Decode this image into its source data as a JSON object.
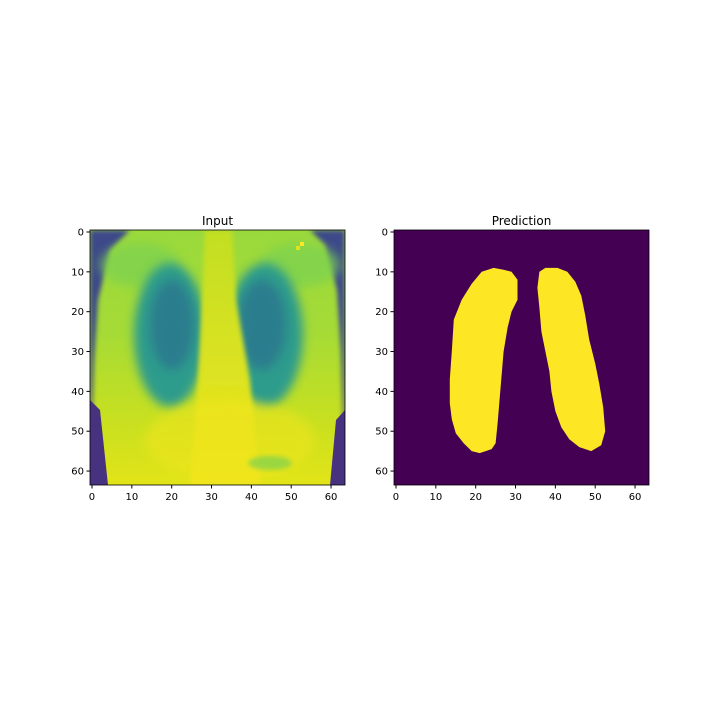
{
  "chart_data": [
    {
      "type": "heatmap",
      "title": "Input",
      "colormap": "viridis",
      "image_size": [
        64,
        64
      ],
      "xlim": [
        -0.5,
        63.5
      ],
      "ylim": [
        63.5,
        -0.5
      ],
      "x_ticks": [
        0,
        10,
        20,
        30,
        40,
        50,
        60
      ],
      "x_tick_labels": [
        "0",
        "10",
        "20",
        "30",
        "40",
        "50",
        "60"
      ],
      "y_ticks": [
        0,
        10,
        20,
        30,
        40,
        50,
        60
      ],
      "y_tick_labels": [
        "0",
        "10",
        "20",
        "30",
        "40",
        "50",
        "60"
      ],
      "content": "grayscale chest X-ray, 64x64, rendered with viridis colormap"
    },
    {
      "type": "heatmap",
      "title": "Prediction",
      "colormap": "viridis",
      "image_size": [
        64,
        64
      ],
      "xlim": [
        -0.5,
        63.5
      ],
      "ylim": [
        63.5,
        -0.5
      ],
      "x_ticks": [
        0,
        10,
        20,
        30,
        40,
        50,
        60
      ],
      "x_tick_labels": [
        "0",
        "10",
        "20",
        "30",
        "40",
        "50",
        "60"
      ],
      "y_ticks": [
        0,
        10,
        20,
        30,
        40,
        50,
        60
      ],
      "y_tick_labels": [
        "0",
        "10",
        "20",
        "30",
        "40",
        "50",
        "60"
      ],
      "values": "binary mask: 0 = background, 1 = lung",
      "mask_regions": [
        {
          "name": "left-lung-mask",
          "outline": [
            [
              24.5,
              9
            ],
            [
              27,
              9.5
            ],
            [
              29,
              10
            ],
            [
              30.5,
              12
            ],
            [
              30.5,
              17
            ],
            [
              29,
              20
            ],
            [
              28,
              24
            ],
            [
              27,
              30
            ],
            [
              26.5,
              36
            ],
            [
              26,
              42
            ],
            [
              25.5,
              48
            ],
            [
              25,
              53
            ],
            [
              24,
              54.5
            ],
            [
              21,
              55.5
            ],
            [
              19,
              55
            ],
            [
              17,
              53
            ],
            [
              15,
              50.5
            ],
            [
              14,
              47
            ],
            [
              13.5,
              43
            ],
            [
              13.5,
              37
            ],
            [
              14,
              30
            ],
            [
              14.5,
              22
            ],
            [
              16.5,
              17
            ],
            [
              19,
              13
            ],
            [
              21.5,
              10
            ]
          ]
        },
        {
          "name": "right-lung-mask",
          "outline": [
            [
              37.5,
              9
            ],
            [
              40.5,
              9
            ],
            [
              43,
              10
            ],
            [
              45,
              12.5
            ],
            [
              46.5,
              16
            ],
            [
              47.5,
              21
            ],
            [
              48.5,
              27
            ],
            [
              50,
              33
            ],
            [
              51,
              38
            ],
            [
              52,
              44
            ],
            [
              52.5,
              50
            ],
            [
              51.5,
              53.5
            ],
            [
              49,
              55
            ],
            [
              46,
              54
            ],
            [
              43.5,
              52
            ],
            [
              41.5,
              49
            ],
            [
              40,
              45
            ],
            [
              39,
              40
            ],
            [
              38.5,
              35
            ],
            [
              37.5,
              30
            ],
            [
              36.5,
              25
            ],
            [
              36,
              19
            ],
            [
              35.5,
              14
            ],
            [
              36,
              10
            ]
          ]
        }
      ]
    }
  ],
  "colors": {
    "mask_background": "#440154",
    "mask_foreground": "#fde725"
  }
}
